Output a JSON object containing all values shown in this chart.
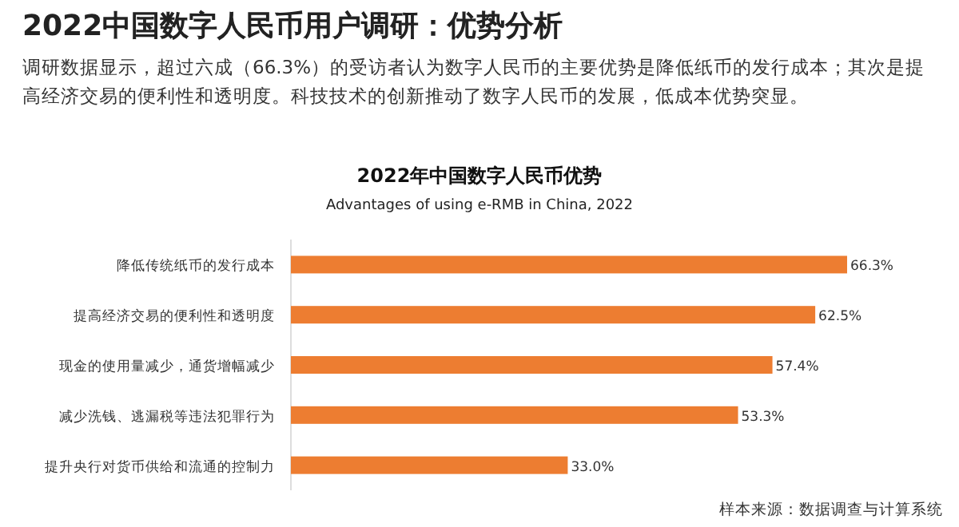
{
  "chart_data": {
    "type": "bar",
    "orientation": "horizontal",
    "title": "2022年中国数字人民币优势",
    "subtitle": "Advantages of using e-RMB in China, 2022",
    "annotations": [
      "2022中国数字人民币用户调研：优势分析",
      "调研数据显示，超过六成（66.3%）的受访者认为数字人民币的主要优势是降低纸币的发行成本；其次是提高经济交易的便利性和透明度。科技技术的创新推动了数字人民币的发展，低成本优势突显。",
      "样本来源：数据调查与计算系统"
    ],
    "categories": [
      "降低传统纸币的发行成本",
      "提高经济交易的便利性和透明度",
      "现金的使用量减少，通货增幅减少",
      "减少洗钱、逃漏税等违法犯罪行为",
      "提升央行对货币供给和流通的控制力"
    ],
    "values": [
      66.3,
      62.5,
      57.4,
      53.3,
      33.0
    ],
    "value_labels": [
      "66.3%",
      "62.5%",
      "57.4%",
      "53.3%",
      "33.0%"
    ],
    "color": "#ed7d31"
  }
}
